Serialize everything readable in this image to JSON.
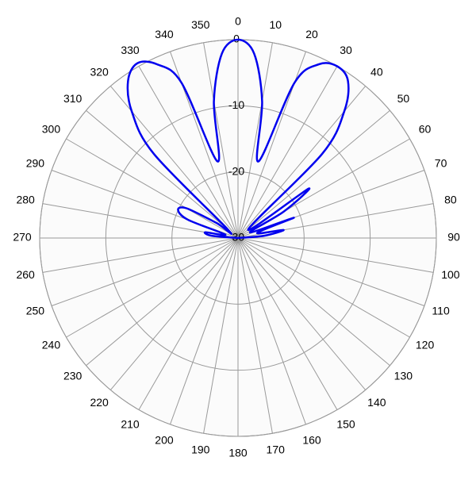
{
  "chart_data": {
    "type": "polar",
    "x": [
      -90,
      -85,
      -80,
      -75,
      -70,
      -65,
      -60,
      -55,
      -50,
      -45,
      -40,
      -35,
      -30,
      -25,
      -20,
      -15,
      -10,
      -5,
      0,
      5,
      10,
      15,
      20,
      25,
      30,
      35,
      40,
      45,
      50,
      55,
      60,
      65,
      70,
      75,
      80,
      85,
      90
    ],
    "values": [
      -30,
      -26,
      -25,
      -28,
      -22,
      -20,
      -21,
      -26,
      -28,
      -12,
      -5,
      -1,
      0.5,
      -1,
      -5,
      -18,
      -9,
      -2,
      0,
      -2,
      -9,
      -18,
      -5,
      -1,
      0,
      -1,
      -5,
      -12,
      -28,
      -17,
      -22,
      -28,
      -21,
      -27,
      -23,
      -26,
      -30
    ],
    "color": "#0000ee",
    "xticks": [
      0,
      10,
      20,
      30,
      40,
      50,
      60,
      70,
      80,
      90,
      100,
      110,
      120,
      130,
      140,
      150,
      160,
      170,
      180,
      190,
      200,
      210,
      220,
      230,
      240,
      250,
      260,
      270,
      280,
      290,
      300,
      310,
      320,
      330,
      340,
      350
    ],
    "ylim": [
      -30,
      0
    ],
    "yticks": [
      0,
      -10,
      -20,
      -30
    ],
    "grid": true
  }
}
